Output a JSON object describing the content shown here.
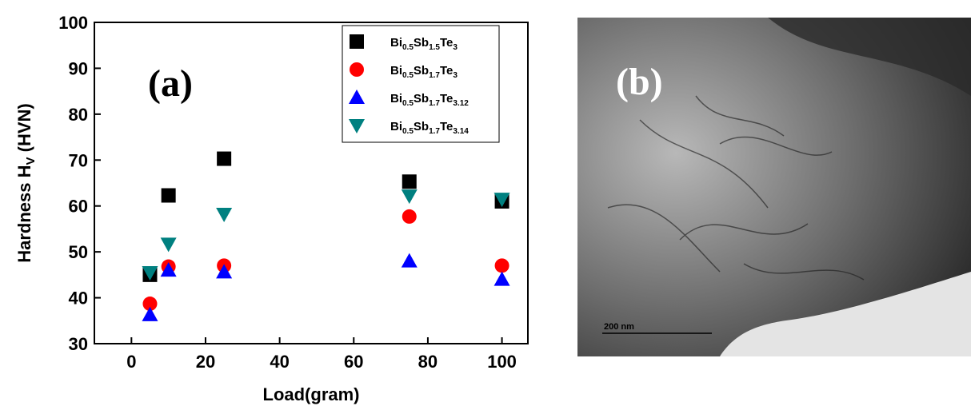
{
  "chart_data": {
    "type": "scatter",
    "x": [
      5,
      10,
      25,
      75,
      100
    ],
    "series": [
      {
        "name": "Bi0.5Sb1.5Te3",
        "color": "#000000",
        "marker": "square",
        "values": [
          45,
          62.3,
          70.3,
          65.3,
          61
        ]
      },
      {
        "name": "Bi0.5Sb1.7Te3",
        "color": "#ff0000",
        "marker": "circle",
        "values": [
          38.7,
          46.8,
          47,
          57.7,
          47
        ]
      },
      {
        "name": "Bi0.5Sb1.7Te3.12",
        "color": "#0000ff",
        "marker": "triangle-up",
        "values": [
          36.3,
          46,
          45.6,
          48,
          44
        ]
      },
      {
        "name": "Bi0.5Sb1.7Te3.14",
        "color": "#008080",
        "marker": "triangle-down",
        "values": [
          45.5,
          51.7,
          58.2,
          62.2,
          61.5
        ]
      }
    ],
    "xlabel": "Load(gram)",
    "ylabel": {
      "main": "Hardness H",
      "sub": "V",
      "tail": " (HVN)"
    },
    "xlim": [
      -10,
      107
    ],
    "xticks": [
      0,
      20,
      40,
      60,
      80,
      100
    ],
    "ylim": [
      30,
      100
    ],
    "yticks": [
      30,
      40,
      50,
      60,
      70,
      80,
      90,
      100
    ],
    "panel_label": "(a)",
    "legend": "upper right"
  },
  "image_panel": {
    "panel_label": "(b)",
    "scale_bar": "200 nm"
  }
}
